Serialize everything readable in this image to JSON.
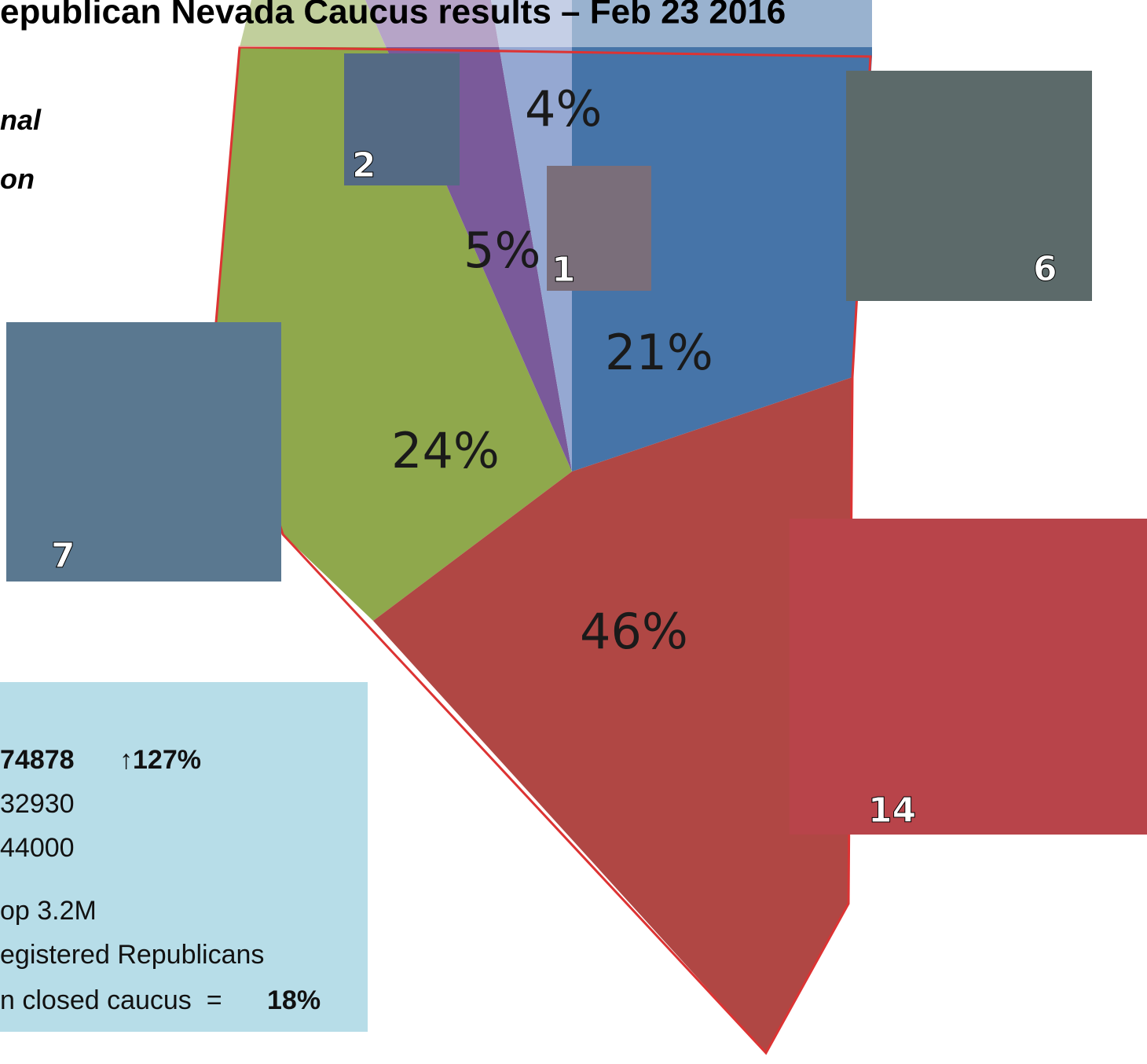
{
  "title": "epublican Nevada Caucus results – Feb 23    2016",
  "side_notes": [
    "nal",
    "on"
  ],
  "slices": [
    {
      "label": "24%",
      "photo_number": "7"
    },
    {
      "label": "5%",
      "photo_number": "2"
    },
    {
      "label": "4%",
      "photo_number": "1"
    },
    {
      "label": "21%",
      "photo_number": "6"
    },
    {
      "label": "46%",
      "photo_number": "14"
    }
  ],
  "info_box": {
    "turnout": "74878",
    "change": "↑127%",
    "lines": [
      "32930",
      "44000",
      "op 3.2M",
      "egistered Republicans"
    ],
    "caucus_text": "n closed caucus  =",
    "caucus_pct": "18%"
  }
}
